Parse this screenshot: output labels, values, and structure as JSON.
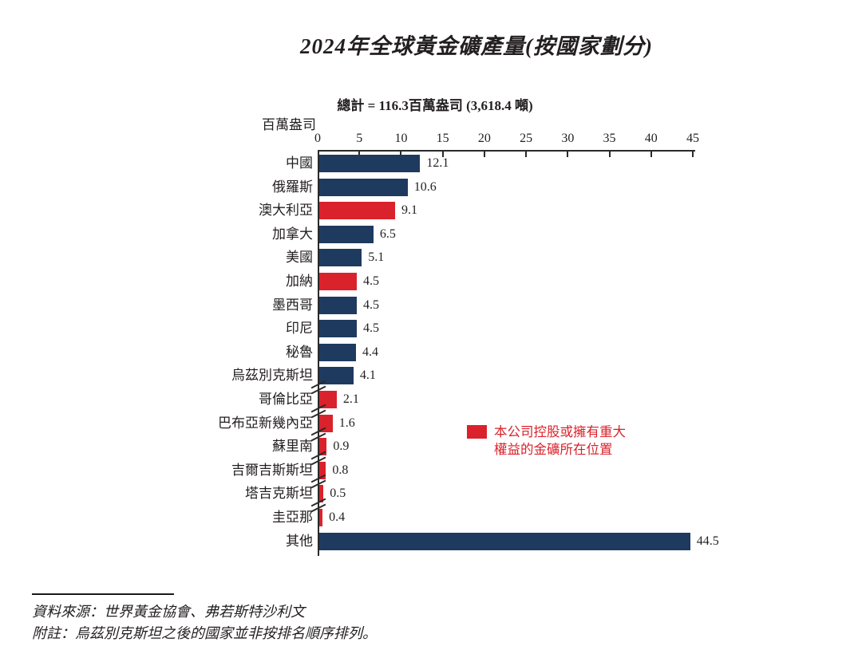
{
  "title": "2024年全球黃金礦產量(按國家劃分)",
  "subtitle": "總計 =  116.3百萬盎司 (3,618.4 噸)",
  "unit_label": "百萬盎司",
  "colors": {
    "navy": "#1e3a5f",
    "red": "#d9222b",
    "axis": "#2a2a2a",
    "text": "#231f20"
  },
  "chart_data": {
    "type": "bar",
    "orientation": "horizontal",
    "title": "2024年全球黃金礦產量(按國家劃分)",
    "subtitle": "總計 =  116.3百萬盎司 (3,618.4 噸)",
    "xlabel": "百萬盎司",
    "xlim": [
      0,
      45
    ],
    "xticks": [
      0,
      5,
      10,
      15,
      20,
      25,
      30,
      35,
      40,
      45
    ],
    "grid": false,
    "legend_position": "middle-right",
    "categories": [
      "中國",
      "俄羅斯",
      "澳大利亞",
      "加拿大",
      "美國",
      "加納",
      "墨西哥",
      "印尼",
      "秘魯",
      "烏茲別克斯坦",
      "哥倫比亞",
      "巴布亞新幾內亞",
      "蘇里南",
      "吉爾吉斯斯坦",
      "塔吉克斯坦",
      "圭亞那",
      "其他"
    ],
    "values": [
      12.1,
      10.6,
      9.1,
      6.5,
      5.1,
      4.5,
      4.5,
      4.5,
      4.4,
      4.1,
      2.1,
      1.6,
      0.9,
      0.8,
      0.5,
      0.4,
      44.5
    ],
    "bar_colors": [
      "navy",
      "navy",
      "red",
      "navy",
      "navy",
      "red",
      "navy",
      "navy",
      "navy",
      "navy",
      "red",
      "red",
      "red",
      "red",
      "red",
      "red",
      "navy"
    ],
    "axis_break_above": [
      false,
      false,
      false,
      false,
      false,
      false,
      false,
      false,
      false,
      false,
      true,
      true,
      true,
      true,
      true,
      true,
      false
    ]
  },
  "legend": {
    "swatch_color": "#d9222b",
    "lines": [
      "本公司控股或擁有重大",
      "權益的金礦所在位置"
    ]
  },
  "footer": {
    "source": "資料來源：世界黃金協會、弗若斯特沙利文",
    "note": "附註：烏茲別克斯坦之後的國家並非按排名順序排列。"
  }
}
